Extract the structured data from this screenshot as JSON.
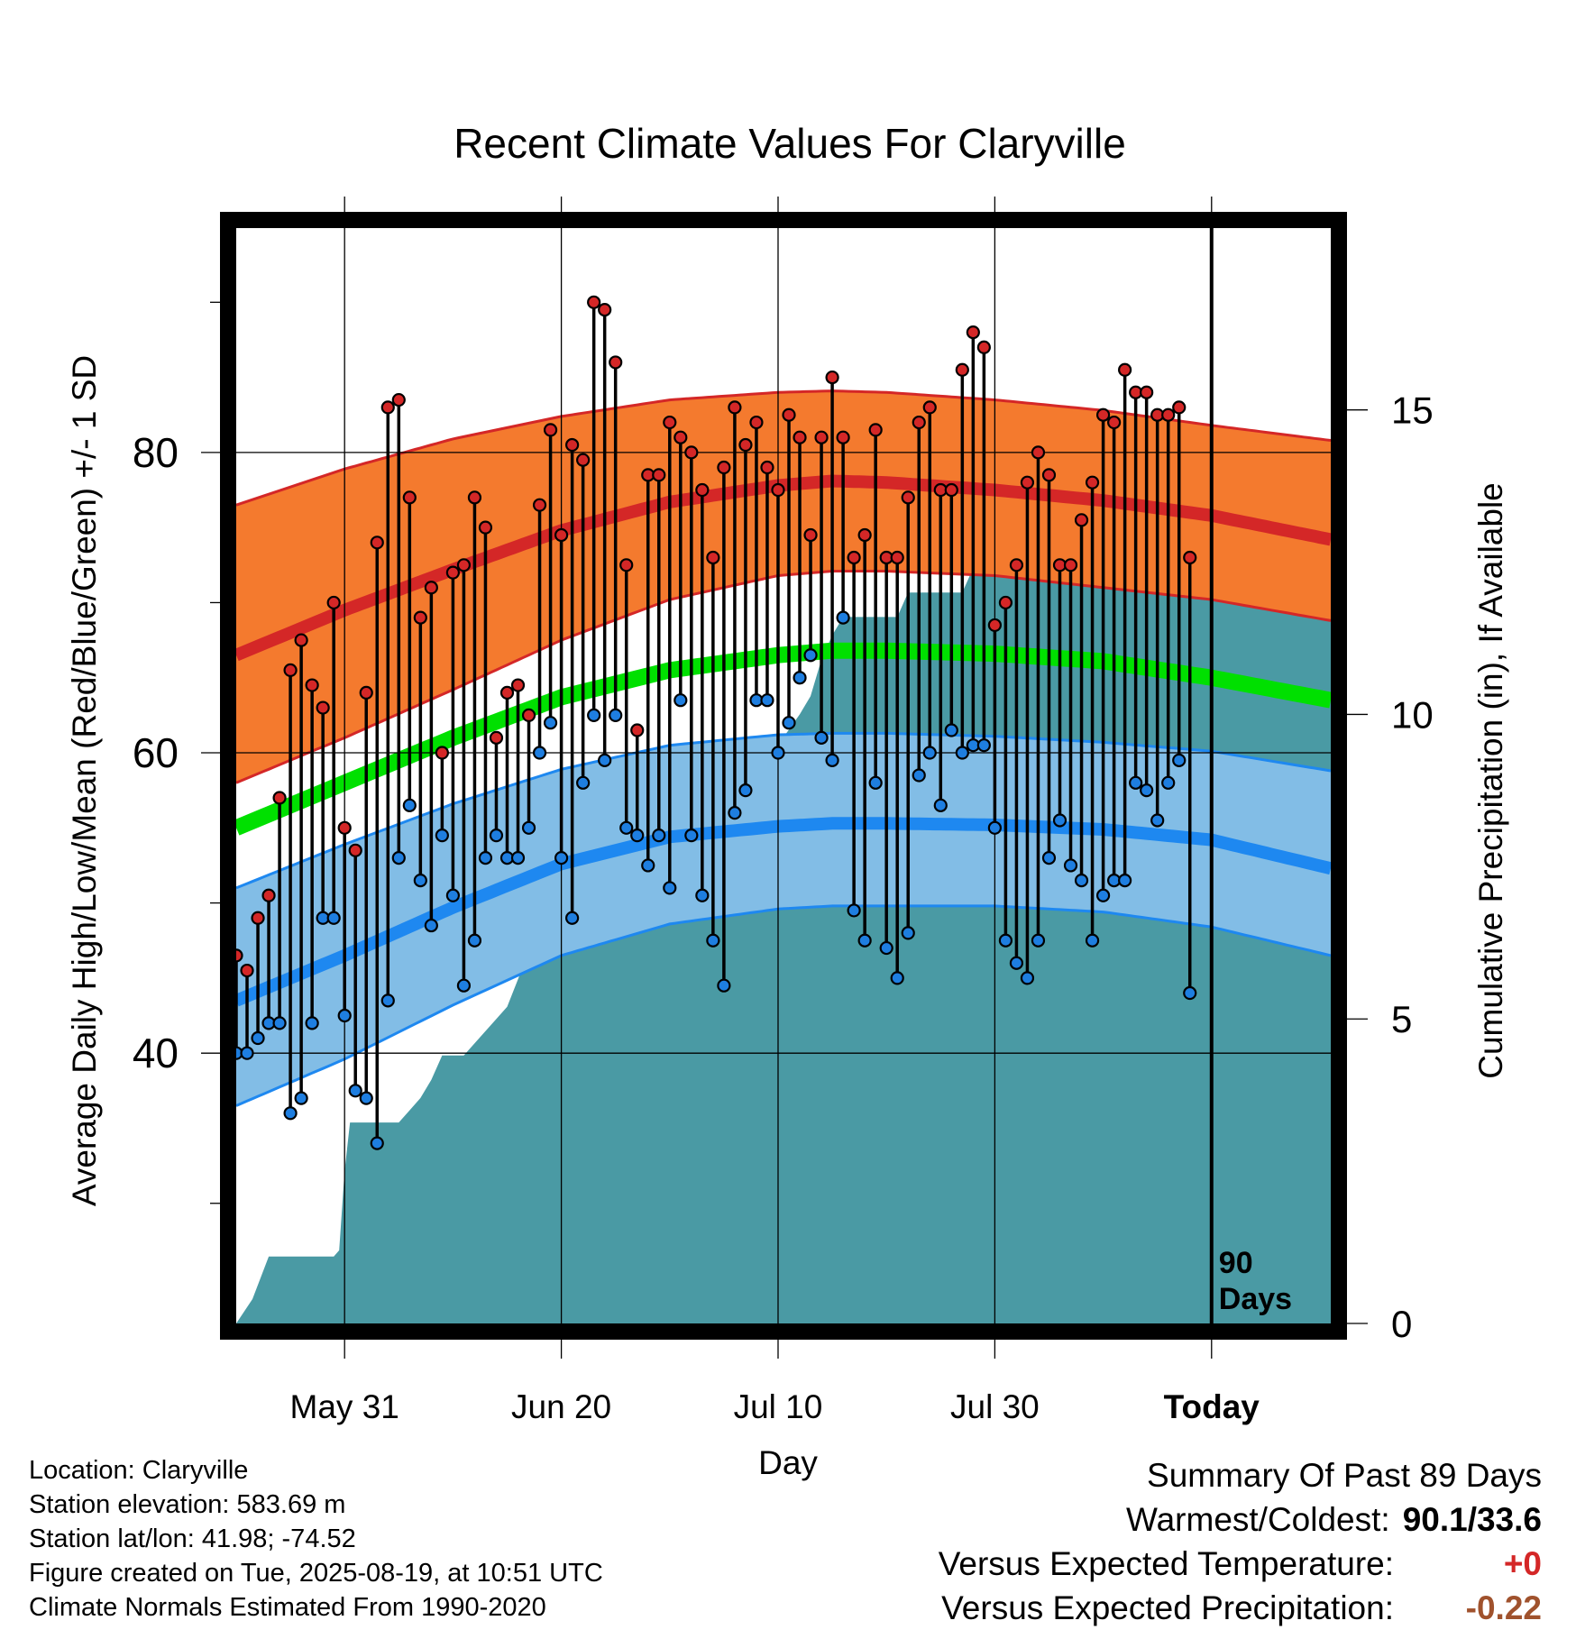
{
  "chart_data": {
    "type": "line",
    "title": "Recent Climate Values For Claryville",
    "xlabel": "Day",
    "ylabel_left": "Average Daily High/Low/Mean (Red/Blue/Green) +/- 1 SD",
    "ylabel_right": "Cumulative Precipitation (in), If Available",
    "left_ylim": [
      22,
      95
    ],
    "right_ylim": [
      0,
      18
    ],
    "left_ticks": [
      40,
      60,
      80
    ],
    "right_ticks": [
      0,
      5,
      10,
      15
    ],
    "x_ticks": [
      "May 31",
      "Jun 20",
      "Jul 10",
      "Jul 30",
      "Today"
    ],
    "x_range_days": [
      0,
      101
    ],
    "x_tick_days": [
      10,
      30,
      50,
      70,
      90
    ],
    "today_marker": {
      "day": 90,
      "label_line1": "90",
      "label_line2": "Days"
    },
    "grid": true,
    "normals": {
      "days": [
        0,
        10,
        20,
        30,
        40,
        50,
        55,
        60,
        70,
        80,
        90,
        101
      ],
      "high_mean": [
        66.5,
        69.5,
        72.2,
        74.8,
        76.7,
        77.8,
        78.1,
        78.0,
        77.5,
        76.8,
        75.8,
        74.2
      ],
      "high_upper": [
        76.5,
        78.9,
        80.9,
        82.4,
        83.5,
        84.0,
        84.1,
        84.0,
        83.5,
        82.8,
        81.8,
        80.8
      ],
      "high_lower": [
        58.0,
        61.0,
        64.2,
        67.5,
        70.2,
        71.8,
        72.1,
        72.1,
        71.8,
        71.0,
        70.2,
        68.8
      ],
      "mean_mean": [
        55.0,
        58.0,
        61.0,
        63.7,
        65.5,
        66.5,
        66.8,
        66.8,
        66.6,
        66.1,
        65.0,
        63.5
      ],
      "low_mean": [
        43.5,
        46.5,
        49.7,
        52.6,
        54.4,
        55.1,
        55.3,
        55.3,
        55.2,
        54.9,
        54.2,
        52.3
      ],
      "low_upper": [
        51.0,
        53.9,
        56.6,
        58.9,
        60.5,
        61.2,
        61.3,
        61.3,
        61.1,
        60.7,
        60.1,
        58.8
      ],
      "low_lower": [
        36.5,
        39.6,
        43.2,
        46.5,
        48.6,
        49.6,
        49.8,
        49.8,
        49.8,
        49.4,
        48.4,
        46.5
      ]
    },
    "daily_high": [
      46.5,
      45.5,
      49,
      50.5,
      57,
      65.5,
      67.5,
      64.5,
      63,
      70,
      55,
      53.5,
      64,
      74,
      83,
      83.5,
      77,
      69,
      71,
      60,
      72,
      72.5,
      77,
      75,
      61,
      64,
      64.5,
      62.5,
      76.5,
      81.5,
      74.5,
      80.5,
      79.5,
      90,
      89.5,
      86,
      72.5,
      61.5,
      78.5,
      78.5,
      82,
      81,
      80,
      77.5,
      73,
      79,
      83,
      80.5,
      82,
      79,
      77.5,
      82.5,
      81,
      74.5,
      81,
      85,
      81,
      73,
      74.5,
      81.5,
      73,
      73,
      77,
      82,
      83,
      77.5,
      77.5,
      85.5,
      88,
      87,
      68.5,
      70,
      72.5,
      78,
      80,
      78.5,
      72.5,
      72.5,
      75.5,
      78,
      82.5,
      82,
      85.5,
      84,
      84,
      82.5,
      82.5,
      83,
      73
    ],
    "daily_low": [
      40,
      40,
      41,
      42,
      42,
      36,
      37,
      42,
      49,
      49,
      42.5,
      37.5,
      37,
      34,
      43.5,
      53,
      56.5,
      51.5,
      48.5,
      54.5,
      50.5,
      44.5,
      47.5,
      53,
      54.5,
      53,
      53,
      55,
      60,
      62,
      53,
      49,
      58,
      62.5,
      59.5,
      62.5,
      55,
      54.5,
      52.5,
      54.5,
      51,
      63.5,
      54.5,
      50.5,
      47.5,
      44.5,
      56,
      57.5,
      63.5,
      63.5,
      60,
      62,
      65,
      66.5,
      61,
      59.5,
      69,
      49.5,
      47.5,
      58,
      47,
      45,
      48,
      58.5,
      60,
      56.5,
      61.5,
      60,
      60.5,
      60.5,
      55,
      47.5,
      46,
      45,
      47.5,
      53,
      55.5,
      52.5,
      51.5,
      47.5,
      50.5,
      51.5,
      51.5,
      58,
      57.5,
      55.5,
      58,
      59.5,
      44
    ],
    "cum_precip": {
      "days": [
        0,
        1.5,
        3,
        5,
        7,
        9,
        9.5,
        10,
        10.5,
        15,
        16,
        17,
        18,
        19,
        21,
        24,
        25,
        27,
        28,
        28.5,
        31,
        32,
        33,
        36,
        38,
        39,
        40,
        41,
        42,
        44,
        46,
        48,
        49,
        50,
        52,
        53,
        54,
        55,
        56,
        60,
        61,
        62,
        67,
        68,
        70,
        71,
        72,
        74,
        76,
        77,
        78,
        90,
        101
      ],
      "values": [
        0,
        0.4,
        1.1,
        1.1,
        1.1,
        1.1,
        1.2,
        2.5,
        3.3,
        3.3,
        3.5,
        3.7,
        4.0,
        4.4,
        4.4,
        5.0,
        5.2,
        6.1,
        6.6,
        6.7,
        6.8,
        7.2,
        7.3,
        7.3,
        7.4,
        7.6,
        7.7,
        7.7,
        7.8,
        7.8,
        7.9,
        7.9,
        8.3,
        9.5,
        10.0,
        10.3,
        10.9,
        11.3,
        11.6,
        11.6,
        11.6,
        12.0,
        12.0,
        12.4,
        12.6,
        12.7,
        12.8,
        13.0,
        13.5,
        13.6,
        13.6,
        13.7,
        13.7
      ]
    },
    "colors": {
      "high_band": "#f47a2e",
      "high_line": "#d42727",
      "mean_line": "#00e000",
      "low_band": "#82bde6",
      "low_line": "#1e88f0",
      "precip_fill": "#4a9aa4",
      "high_dot": "#d42727",
      "low_dot": "#1e7ee0",
      "frame": "#000000"
    }
  },
  "info": {
    "location": "Location: Claryville",
    "elevation": "Station elevation: 583.69 m",
    "latlon": "Station lat/lon: 41.98; -74.52",
    "created": "Figure created on Tue, 2025-08-19, at 10:51 UTC",
    "normals_period": "Climate Normals Estimated From 1990-2020"
  },
  "summary": {
    "title": "Summary Of Past 89 Days",
    "warmest_coldest_label": "Warmest/Coldest:",
    "warmest_coldest_value": "90.1/33.6",
    "temp_label": "Versus Expected Temperature:",
    "temp_value": "+0",
    "temp_color": "#d42727",
    "precip_label": "Versus Expected Precipitation:",
    "precip_value": "-0.22",
    "precip_color": "#a0522d"
  }
}
